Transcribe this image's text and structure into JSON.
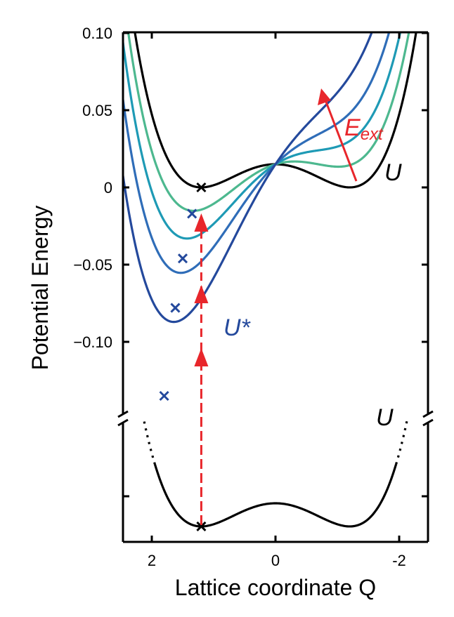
{
  "chart_data": {
    "type": "line",
    "title": "",
    "xlabel": "Lattice coordinate Q",
    "ylabel": "Potential Energy",
    "xlim": [
      2.45,
      -2.45
    ],
    "x_reversed": true,
    "x_ticks": [
      2,
      0,
      -2
    ],
    "x_tick_labels": [
      "2",
      "0",
      "-2"
    ],
    "ylim": [
      -0.15,
      0.1
    ],
    "y_ticks": [
      0.1,
      0.05,
      0,
      -0.05,
      -0.1
    ],
    "y_tick_labels": [
      "0.10",
      "0.05",
      "0",
      "−0.05",
      "−0.10"
    ],
    "axis_break": true,
    "grid": false,
    "legend": "none",
    "series": [
      {
        "name": "U",
        "color": "#000000",
        "field": 0.0
      },
      {
        "field": 0.012,
        "color": "#4db88f"
      },
      {
        "field": 0.025,
        "color": "#1e9ab5"
      },
      {
        "field": 0.04,
        "color": "#2f6db8"
      },
      {
        "name": "U*",
        "color": "#24499c",
        "field": 0.06
      }
    ],
    "minima_markers": [
      {
        "x": 1.2,
        "y": 0.0,
        "color": "#000000"
      },
      {
        "x": 1.35,
        "y": -0.017,
        "color": "#24499c"
      },
      {
        "x": 1.5,
        "y": -0.046,
        "color": "#24499c"
      },
      {
        "x": 1.62,
        "y": -0.078,
        "color": "#24499c"
      },
      {
        "x": 1.8,
        "y": -0.135,
        "color": "#24499c"
      }
    ],
    "ground_state": {
      "label": "U",
      "minimum_x": 1.2
    },
    "annotations": [
      {
        "text": "E",
        "subscript": "ext",
        "color": "#e8262b"
      },
      {
        "text": "U",
        "color": "#000000"
      },
      {
        "text": "U*",
        "color": "#24499c"
      },
      {
        "text": "U",
        "color": "#000000"
      }
    ]
  }
}
